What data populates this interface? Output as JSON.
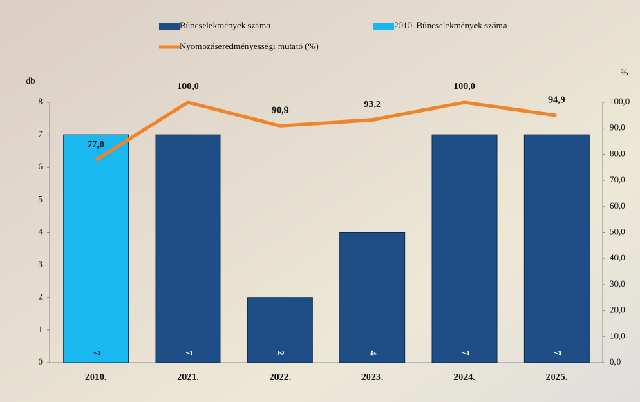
{
  "chart_data": {
    "type": "bar-line",
    "categories": [
      "2010.",
      "2021.",
      "2022.",
      "2023.",
      "2024.",
      "2025."
    ],
    "y_label": "db",
    "y2_label": "%",
    "ylim": [
      0,
      8
    ],
    "yticks": [
      0,
      1,
      2,
      3,
      4,
      5,
      6,
      7,
      8
    ],
    "y2lim": [
      0,
      100
    ],
    "y2ticks": [
      {
        "value": 0,
        "label": "0,0"
      },
      {
        "value": 10,
        "label": "10,0"
      },
      {
        "value": 20,
        "label": "20,0"
      },
      {
        "value": 30,
        "label": "30,0"
      },
      {
        "value": 40,
        "label": "40,0"
      },
      {
        "value": 50,
        "label": "50,0"
      },
      {
        "value": 60,
        "label": "60,0"
      },
      {
        "value": 70,
        "label": "70,0"
      },
      {
        "value": 80,
        "label": "80,0"
      },
      {
        "value": 90,
        "label": "90,0"
      },
      {
        "value": 100,
        "label": "100,0"
      }
    ],
    "series": [
      {
        "name": "Bűncselekmények száma",
        "type": "bar",
        "color": "#1f4e86",
        "values": [
          null,
          7,
          2,
          4,
          7,
          7
        ]
      },
      {
        "name": "2010. Bűncselekmények száma",
        "type": "bar",
        "color": "#1ab8f0",
        "values": [
          7,
          null,
          null,
          null,
          null,
          null
        ]
      },
      {
        "name": "Nyomozáseredményességi mutató (%)",
        "type": "line",
        "axis": "y2",
        "color": "#f0842c",
        "values": [
          77.8,
          100,
          90.9,
          93.2,
          100,
          94.9
        ],
        "value_labels": [
          "77,8",
          "100,0",
          "90,9",
          "93,2",
          "100,0",
          "94,9"
        ]
      }
    ]
  }
}
